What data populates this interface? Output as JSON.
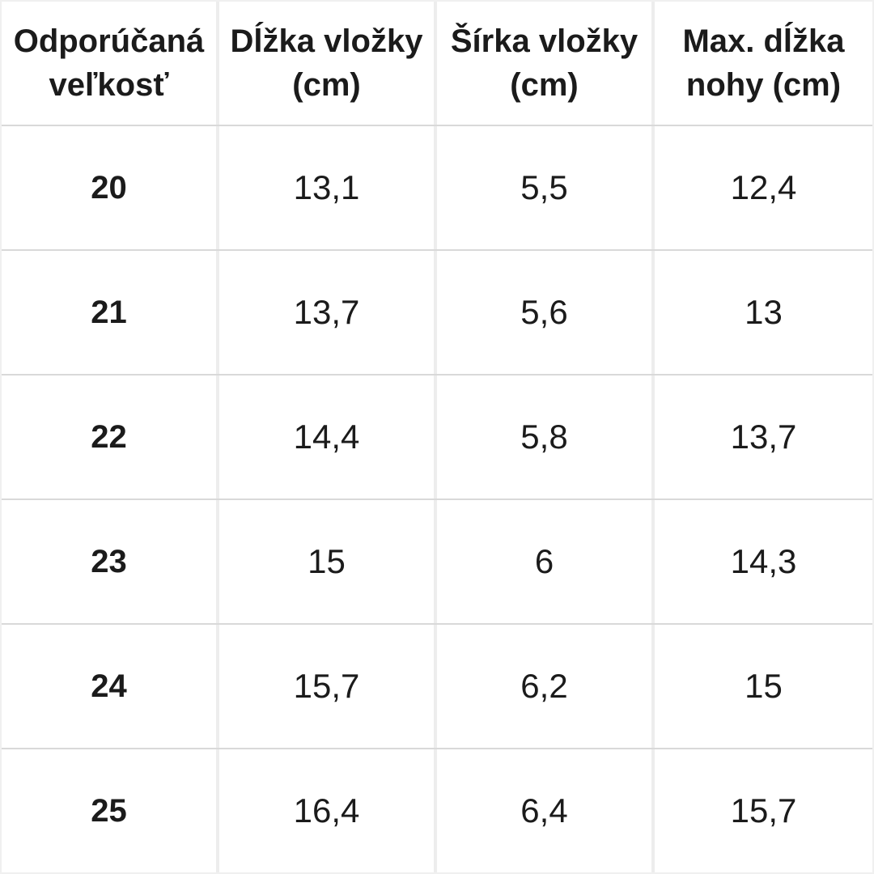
{
  "chart_data": {
    "type": "table",
    "columns": [
      "Odporúčaná veľkosť",
      "Dĺžka vložky (cm)",
      "Šírka vložky (cm)",
      "Max. dĺžka nohy (cm)"
    ],
    "rows": [
      [
        "20",
        "13,1",
        "5,5",
        "12,4"
      ],
      [
        "21",
        "13,7",
        "5,6",
        "13"
      ],
      [
        "22",
        "14,4",
        "5,8",
        "13,7"
      ],
      [
        "23",
        "15",
        "6",
        "14,3"
      ],
      [
        "24",
        "15,7",
        "6,2",
        "15"
      ],
      [
        "25",
        "16,4",
        "6,4",
        "15,7"
      ]
    ],
    "layout": {
      "columns_count": 4,
      "data_rows_count": 6,
      "header_bold": true,
      "first_column_bold": true,
      "grid": "light gray dividers, white cells"
    }
  },
  "table": {
    "header_lines": [
      [
        "Odporúčaná",
        "veľkosť"
      ],
      [
        "Dĺžka vložky",
        "(cm)"
      ],
      [
        "Šírka vložky",
        "(cm)"
      ],
      [
        "Max. dĺžka",
        "nohy (cm)"
      ]
    ]
  },
  "colors": {
    "text": "#1b1b1b",
    "background": "#ffffff",
    "row_divider": "#d9d9d9",
    "column_divider": "#ededed",
    "outer_border": "#f0f0f0"
  }
}
